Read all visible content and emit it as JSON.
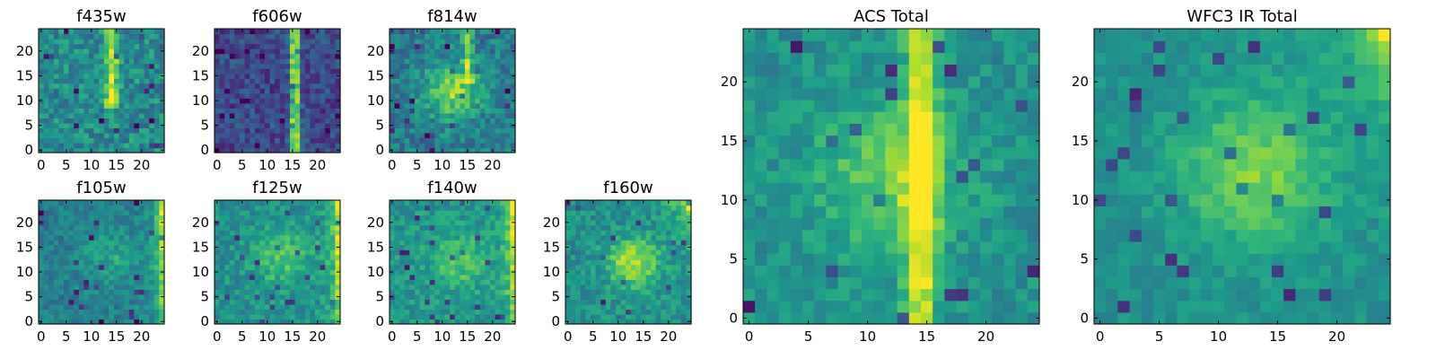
{
  "chart_data": [
    {
      "type": "heatmap",
      "title": "f435w",
      "xlabel": "",
      "ylabel": "",
      "xlim": [
        0,
        25
      ],
      "ylim": [
        0,
        25
      ],
      "xticks": [
        0,
        5,
        10,
        15,
        20
      ],
      "yticks": [
        0,
        5,
        10,
        15,
        20
      ],
      "colormap": "viridis",
      "grid_size": [
        25,
        25
      ],
      "features": {
        "base": 0.48,
        "noise": 0.16,
        "stripe": {
          "x": 14,
          "y0": 9,
          "y1": 25,
          "width": 1.2,
          "amp": 0.5
        },
        "blob": null,
        "corner": null
      }
    },
    {
      "type": "heatmap",
      "title": "f606w",
      "xlabel": "",
      "ylabel": "",
      "xlim": [
        0,
        25
      ],
      "ylim": [
        0,
        25
      ],
      "xticks": [
        0,
        5,
        10,
        15,
        20
      ],
      "yticks": [
        0,
        5,
        10,
        15,
        20
      ],
      "colormap": "viridis",
      "grid_size": [
        25,
        25
      ],
      "features": {
        "base": 0.22,
        "noise": 0.13,
        "stripe": {
          "x": 15.5,
          "y0": 0,
          "y1": 25,
          "width": 0.9,
          "amp": 0.75
        },
        "blob": null,
        "corner": null
      }
    },
    {
      "type": "heatmap",
      "title": "f814w",
      "xlabel": "",
      "ylabel": "",
      "xlim": [
        0,
        25
      ],
      "ylim": [
        0,
        25
      ],
      "xticks": [
        0,
        5,
        10,
        15,
        20
      ],
      "yticks": [
        0,
        5,
        10,
        15,
        20
      ],
      "colormap": "viridis",
      "grid_size": [
        25,
        25
      ],
      "features": {
        "base": 0.42,
        "noise": 0.15,
        "stripe": {
          "x": 15,
          "y0": 14,
          "y1": 25,
          "width": 1.0,
          "amp": 0.35
        },
        "blob": {
          "x": 12,
          "y": 12,
          "r": 4,
          "amp": 0.4
        },
        "corner": null
      }
    },
    {
      "type": "heatmap",
      "title": "f105w",
      "xlabel": "",
      "ylabel": "",
      "xlim": [
        0,
        25
      ],
      "ylim": [
        0,
        25
      ],
      "xticks": [
        0,
        5,
        10,
        15,
        20
      ],
      "yticks": [
        0,
        5,
        10,
        15,
        20
      ],
      "colormap": "viridis",
      "grid_size": [
        25,
        25
      ],
      "features": {
        "base": 0.42,
        "noise": 0.11,
        "stripe": null,
        "blob": {
          "x": 14,
          "y": 13,
          "r": 4,
          "amp": 0.18
        },
        "corner": {
          "side": "right",
          "amp": 0.5
        }
      }
    },
    {
      "type": "heatmap",
      "title": "f125w",
      "xlabel": "",
      "ylabel": "",
      "xlim": [
        0,
        25
      ],
      "ylim": [
        0,
        25
      ],
      "xticks": [
        0,
        5,
        10,
        15,
        20
      ],
      "yticks": [
        0,
        5,
        10,
        15,
        20
      ],
      "colormap": "viridis",
      "grid_size": [
        25,
        25
      ],
      "features": {
        "base": 0.5,
        "noise": 0.12,
        "stripe": null,
        "blob": {
          "x": 13,
          "y": 13,
          "r": 4,
          "amp": 0.22
        },
        "corner": {
          "side": "right",
          "amp": 0.45
        }
      }
    },
    {
      "type": "heatmap",
      "title": "f140w",
      "xlabel": "",
      "ylabel": "",
      "xlim": [
        0,
        25
      ],
      "ylim": [
        0,
        25
      ],
      "xticks": [
        0,
        5,
        10,
        15,
        20
      ],
      "yticks": [
        0,
        5,
        10,
        15,
        20
      ],
      "colormap": "viridis",
      "grid_size": [
        25,
        25
      ],
      "features": {
        "base": 0.52,
        "noise": 0.12,
        "stripe": null,
        "blob": {
          "x": 13,
          "y": 12,
          "r": 4,
          "amp": 0.2
        },
        "corner": {
          "side": "right",
          "amp": 0.45
        }
      }
    },
    {
      "type": "heatmap",
      "title": "f160w",
      "xlabel": "",
      "ylabel": "",
      "xlim": [
        0,
        25
      ],
      "ylim": [
        0,
        25
      ],
      "xticks": [
        0,
        5,
        10,
        15,
        20
      ],
      "yticks": [
        0,
        5,
        10,
        15,
        20
      ],
      "colormap": "viridis",
      "grid_size": [
        25,
        25
      ],
      "features": {
        "base": 0.5,
        "noise": 0.12,
        "stripe": null,
        "blob": {
          "x": 13,
          "y": 12,
          "r": 3.5,
          "amp": 0.38
        },
        "corner": {
          "side": "top-right",
          "amp": 0.45
        }
      }
    },
    {
      "type": "heatmap",
      "title": "ACS Total",
      "xlabel": "",
      "ylabel": "",
      "xlim": [
        0,
        25
      ],
      "ylim": [
        0,
        25
      ],
      "xticks": [
        0,
        5,
        10,
        15,
        20
      ],
      "yticks": [
        0,
        5,
        10,
        15,
        20
      ],
      "colormap": "viridis",
      "grid_size": [
        25,
        25
      ],
      "features": {
        "base": 0.5,
        "noise": 0.1,
        "stripe": {
          "x": 14.5,
          "y0": 0,
          "y1": 25,
          "width": 1.3,
          "amp": 0.45
        },
        "blob": {
          "x": 12,
          "y": 12,
          "r": 4.5,
          "amp": 0.28
        },
        "corner": null
      }
    },
    {
      "type": "heatmap",
      "title": "WFC3 IR Total",
      "xlabel": "",
      "ylabel": "",
      "xlim": [
        0,
        25
      ],
      "ylim": [
        0,
        25
      ],
      "xticks": [
        0,
        5,
        10,
        15,
        20
      ],
      "yticks": [
        0,
        5,
        10,
        15,
        20
      ],
      "colormap": "viridis",
      "grid_size": [
        25,
        25
      ],
      "features": {
        "base": 0.5,
        "noise": 0.07,
        "stripe": null,
        "blob": {
          "x": 13,
          "y": 12.5,
          "r": 4.5,
          "amp": 0.3
        },
        "corner": {
          "side": "top-right",
          "amp": 0.45
        }
      }
    }
  ]
}
